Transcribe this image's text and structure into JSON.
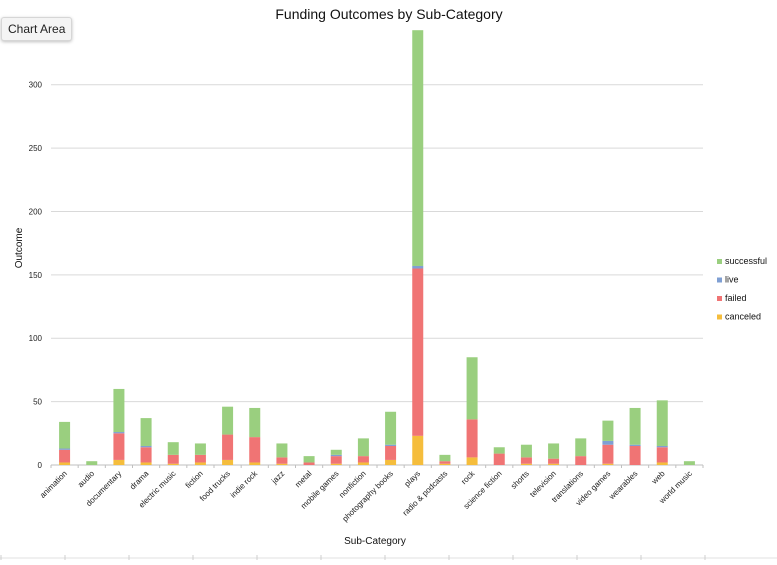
{
  "tooltip": {
    "label": "Chart Area"
  },
  "chart_data": {
    "type": "bar",
    "stacked": true,
    "title": "Funding Outcomes by Sub-Category",
    "xlabel": "Sub-Category",
    "ylabel": "Outcome",
    "ylim": [
      0,
      340
    ],
    "yticks": [
      0,
      50,
      100,
      150,
      200,
      250,
      300
    ],
    "grid": true,
    "legend_position": "right",
    "categories": [
      "animation",
      "audio",
      "documentary",
      "drama",
      "electric music",
      "fiction",
      "food trucks",
      "indie rock",
      "jazz",
      "metal",
      "mobile games",
      "nonfiction",
      "photography books",
      "plays",
      "radio & podcasts",
      "rock",
      "science fiction",
      "shorts",
      "television",
      "translations",
      "video games",
      "wearables",
      "web",
      "world music"
    ],
    "series": [
      {
        "name": "canceled",
        "color": "#f5bd3c",
        "values": [
          2,
          0,
          4,
          2,
          1,
          2,
          4,
          2,
          1,
          0,
          1,
          2,
          4,
          23,
          1,
          6,
          0,
          1,
          1,
          0,
          1,
          0,
          2,
          0
        ]
      },
      {
        "name": "failed",
        "color": "#f07474",
        "values": [
          10,
          0,
          21,
          12,
          7,
          6,
          20,
          20,
          5,
          2,
          6,
          5,
          11,
          132,
          2,
          30,
          9,
          5,
          4,
          7,
          15,
          15,
          12,
          0
        ]
      },
      {
        "name": "live",
        "color": "#7f9fd3",
        "values": [
          1,
          0,
          1,
          1,
          0,
          0,
          0,
          0,
          0,
          0,
          1,
          0,
          1,
          2,
          0,
          0,
          0,
          0,
          0,
          0,
          3,
          1,
          1,
          0
        ]
      },
      {
        "name": "successful",
        "color": "#9acf7f",
        "values": [
          21,
          3,
          34,
          22,
          10,
          9,
          22,
          23,
          11,
          5,
          4,
          14,
          26,
          186,
          5,
          49,
          5,
          10,
          12,
          14,
          16,
          29,
          36,
          3
        ]
      }
    ]
  }
}
